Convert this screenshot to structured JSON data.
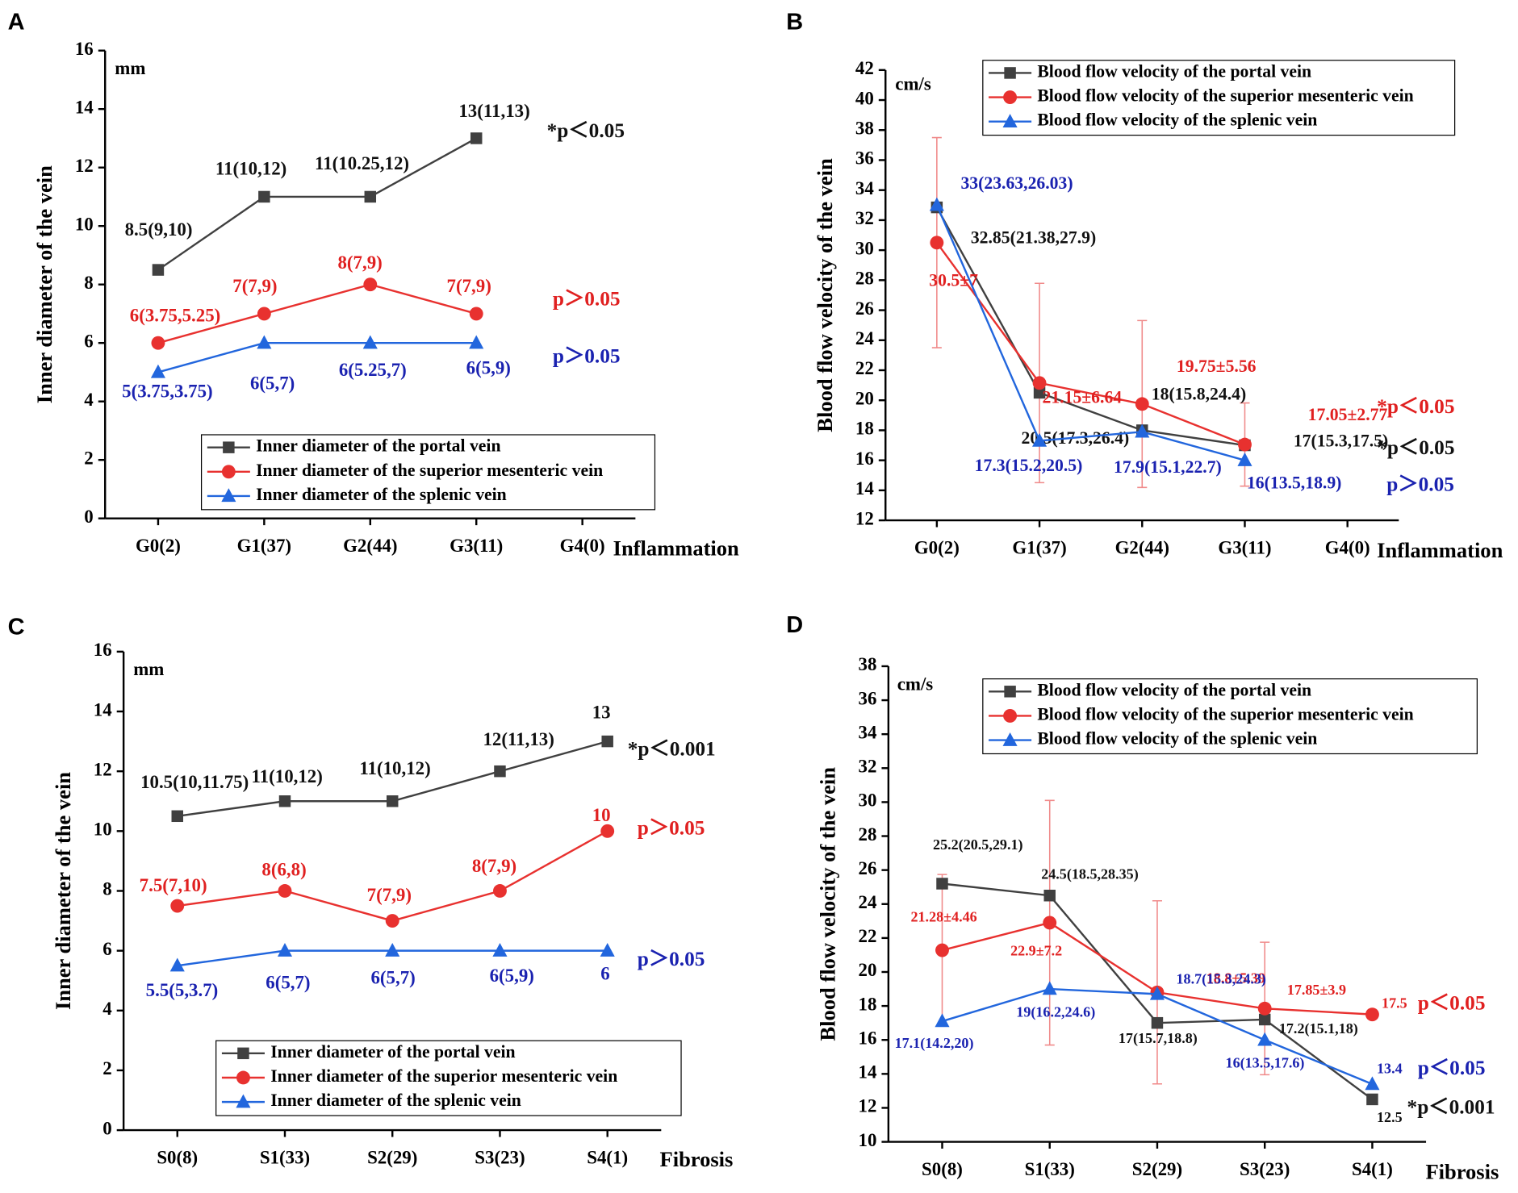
{
  "chart_data": [
    {
      "type": "line",
      "panel": "A",
      "y_label": "Inner diameter of the vein",
      "unit": "mm",
      "x_label": "Inflammation",
      "categories": [
        "G0(2)",
        "G1(37)",
        "G2(44)",
        "G3(11)",
        "G4(0)"
      ],
      "ylim": [
        0,
        16
      ],
      "yticks": [
        0,
        2,
        4,
        6,
        8,
        10,
        12,
        14,
        16
      ],
      "series": [
        {
          "name": "Inner diameter of the portal vein",
          "color": "#404040",
          "label_color": "#111111",
          "marker": "square",
          "values": [
            8.5,
            11,
            11,
            13,
            null
          ],
          "value_labels": [
            "8.5(9,10)",
            "11(10,12)",
            "11(10.25,12)",
            "13(11,13)",
            null
          ]
        },
        {
          "name": "Inner diameter of the superior mesenteric vein",
          "color": "#e8312f",
          "label_color": "#e02020",
          "marker": "circle",
          "values": [
            6,
            7,
            8,
            7,
            null
          ],
          "value_labels": [
            "6(3.75,5.25)",
            "7(7,9)",
            "8(7,9)",
            "7(7,9)",
            null
          ]
        },
        {
          "name": "Inner diameter of the splenic vein",
          "color": "#2266dd",
          "label_color": "#1a22b0",
          "marker": "triangle",
          "values": [
            5,
            6,
            6,
            6,
            null
          ],
          "value_labels": [
            "5(3.75,3.75)",
            "6(5,7)",
            "6(5.25,7)",
            "6(5,9)",
            null
          ]
        }
      ],
      "annotations": [
        {
          "text": "*p＜0.05",
          "color": "#111111"
        },
        {
          "text": "p＞0.05",
          "color": "#e02020"
        },
        {
          "text": "p＞0.05",
          "color": "#1a22b0"
        }
      ]
    },
    {
      "type": "line",
      "panel": "B",
      "y_label": "Blood flow velocity of the vein",
      "unit": "cm/s",
      "x_label": "Inflammation",
      "categories": [
        "G0(2)",
        "G1(37)",
        "G2(44)",
        "G3(11)",
        "G4(0)"
      ],
      "ylim": [
        12,
        42
      ],
      "yticks": [
        12,
        14,
        16,
        18,
        20,
        22,
        24,
        26,
        28,
        30,
        32,
        34,
        36,
        38,
        40,
        42
      ],
      "series": [
        {
          "name": "Blood flow velocity of the portal vein",
          "color": "#404040",
          "label_color": "#111111",
          "marker": "square",
          "values": [
            32.85,
            20.5,
            18,
            17,
            null
          ],
          "value_labels": [
            "32.85(21.38,27.9)",
            "20.5(17.3,26.4)",
            "18(15.8,24.4)",
            "17(15.3,17.5)",
            null
          ]
        },
        {
          "name": "Blood flow velocity of the superior mesenteric vein",
          "color": "#e8312f",
          "label_color": "#e02020",
          "marker": "circle",
          "values": [
            30.5,
            21.15,
            19.75,
            17.05,
            null
          ],
          "errors": [
            7,
            6.64,
            5.56,
            2.77,
            null
          ],
          "value_labels": [
            "30.5±7",
            "21.15±6.64",
            "19.75±5.56",
            "17.05±2.77",
            null
          ]
        },
        {
          "name": "Blood flow velocity of the splenic vein",
          "color": "#2266dd",
          "label_color": "#1a22b0",
          "marker": "triangle",
          "values": [
            33,
            17.3,
            17.9,
            16,
            null
          ],
          "value_labels": [
            "33(23.63,26.03)",
            "17.3(15.2,20.5)",
            "17.9(15.1,22.7)",
            "16(13.5,18.9)",
            null
          ]
        }
      ],
      "annotations": [
        {
          "text": "*p＜0.05",
          "color": "#e02020"
        },
        {
          "text": "*p＜0.05",
          "color": "#111111"
        },
        {
          "text": "p＞0.05",
          "color": "#1a22b0"
        }
      ]
    },
    {
      "type": "line",
      "panel": "C",
      "y_label": "Inner diameter of the vein",
      "unit": "mm",
      "x_label": "Fibrosis",
      "categories": [
        "S0(8)",
        "S1(33)",
        "S2(29)",
        "S3(23)",
        "S4(1)"
      ],
      "ylim": [
        0,
        16
      ],
      "yticks": [
        0,
        2,
        4,
        6,
        8,
        10,
        12,
        14,
        16
      ],
      "series": [
        {
          "name": "Inner diameter of the portal vein",
          "color": "#404040",
          "label_color": "#111111",
          "marker": "square",
          "values": [
            10.5,
            11,
            11,
            12,
            13
          ],
          "value_labels": [
            "10.5(10,11.75)",
            "11(10,12)",
            "11(10,12)",
            "12(11,13)",
            "13"
          ]
        },
        {
          "name": "Inner diameter of the superior mesenteric vein",
          "color": "#e8312f",
          "label_color": "#e02020",
          "marker": "circle",
          "values": [
            7.5,
            8,
            7,
            8,
            10
          ],
          "value_labels": [
            "7.5(7,10)",
            "8(6,8)",
            "7(7,9)",
            "8(7,9)",
            "10"
          ]
        },
        {
          "name": "Inner diameter of the splenic vein",
          "color": "#2266dd",
          "label_color": "#1a22b0",
          "marker": "triangle",
          "values": [
            5.5,
            6,
            6,
            6,
            6
          ],
          "value_labels": [
            "5.5(5,3.7)",
            "6(5,7)",
            "6(5,7)",
            "6(5,9)",
            "6"
          ]
        }
      ],
      "annotations": [
        {
          "text": "*p＜0.001",
          "color": "#111111"
        },
        {
          "text": "p＞0.05",
          "color": "#e02020"
        },
        {
          "text": "p＞0.05",
          "color": "#1a22b0"
        }
      ]
    },
    {
      "type": "line",
      "panel": "D",
      "y_label": "Blood flow velocity of the vein",
      "unit": "cm/s",
      "x_label": "Fibrosis",
      "categories": [
        "S0(8)",
        "S1(33)",
        "S2(29)",
        "S3(23)",
        "S4(1)"
      ],
      "ylim": [
        10,
        38
      ],
      "yticks": [
        10,
        12,
        14,
        16,
        18,
        20,
        22,
        24,
        26,
        28,
        30,
        32,
        34,
        36,
        38
      ],
      "series": [
        {
          "name": "Blood flow velocity of the portal vein",
          "color": "#404040",
          "label_color": "#111111",
          "marker": "square",
          "values": [
            25.2,
            24.5,
            17,
            17.2,
            12.5
          ],
          "value_labels": [
            "25.2(20.5,29.1)",
            "24.5(18.5,28.35)",
            "17(15.7,18.8)",
            "17.2(15.1,18)",
            "12.5"
          ]
        },
        {
          "name": "Blood flow velocity of the superior mesenteric vein",
          "color": "#e8312f",
          "label_color": "#e02020",
          "marker": "circle",
          "values": [
            21.28,
            22.9,
            18.8,
            17.85,
            17.5
          ],
          "errors": [
            4.46,
            7.2,
            5.39,
            3.9,
            null
          ],
          "value_labels": [
            "21.28±4.46",
            "22.9±7.2",
            "18.8±5.39",
            "17.85±3.9",
            "17.5"
          ]
        },
        {
          "name": "Blood flow velocity of the splenic vein",
          "color": "#2266dd",
          "label_color": "#1a22b0",
          "marker": "triangle",
          "values": [
            17.1,
            19,
            18.7,
            16,
            13.4
          ],
          "value_labels": [
            "17.1(14.2,20)",
            "19(16.2,24.6)",
            "18.7(15.3,24.3)",
            "16(13.5,17.6)",
            "13.4"
          ]
        }
      ],
      "annotations": [
        {
          "text": "p＜0.05",
          "color": "#e02020"
        },
        {
          "text": "*p＜0.001",
          "color": "#111111"
        },
        {
          "text": "p＜0.05",
          "color": "#1a22b0"
        }
      ]
    }
  ]
}
